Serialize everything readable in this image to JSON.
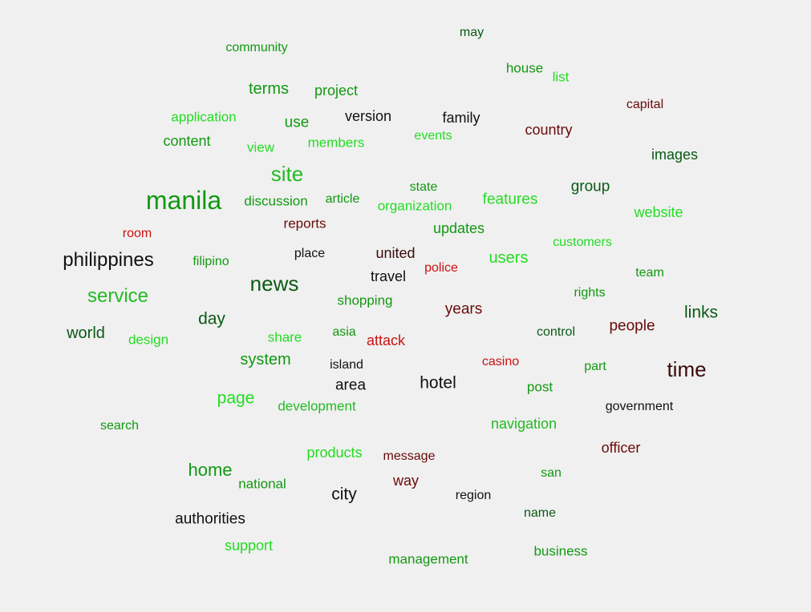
{
  "palette": {
    "bright_green": "#22dd22",
    "green": "#119911",
    "dark_green": "#0a5a14",
    "black": "#111111",
    "dark_red": "#6a0a0a",
    "red": "#cc1111"
  },
  "words": [
    {
      "text": "may",
      "color": "#0a5a14"
    },
    {
      "text": "community",
      "color": "#119911"
    },
    {
      "text": "house",
      "color": "#119911"
    },
    {
      "text": "list",
      "color": "#22dd22"
    },
    {
      "text": "terms",
      "color": "#119911"
    },
    {
      "text": "project",
      "color": "#119911"
    },
    {
      "text": "capital",
      "color": "#6a0a0a"
    },
    {
      "text": "application",
      "color": "#22dd22"
    },
    {
      "text": "use",
      "color": "#119911"
    },
    {
      "text": "version",
      "color": "#111111"
    },
    {
      "text": "family",
      "color": "#111111"
    },
    {
      "text": "country",
      "color": "#6a0a0a"
    },
    {
      "text": "content",
      "color": "#119911"
    },
    {
      "text": "view",
      "color": "#22dd22"
    },
    {
      "text": "members",
      "color": "#22dd22"
    },
    {
      "text": "events",
      "color": "#22dd22"
    },
    {
      "text": "images",
      "color": "#0a5a14"
    },
    {
      "text": "site",
      "color": "#22bb22"
    },
    {
      "text": "state",
      "color": "#119911"
    },
    {
      "text": "group",
      "color": "#0a5a14"
    },
    {
      "text": "manila",
      "color": "#119911"
    },
    {
      "text": "discussion",
      "color": "#119911"
    },
    {
      "text": "article",
      "color": "#119911"
    },
    {
      "text": "features",
      "color": "#22dd22"
    },
    {
      "text": "organization",
      "color": "#22dd22"
    },
    {
      "text": "website",
      "color": "#22dd22"
    },
    {
      "text": "reports",
      "color": "#6a0a0a"
    },
    {
      "text": "room",
      "color": "#cc1111"
    },
    {
      "text": "updates",
      "color": "#119911"
    },
    {
      "text": "customers",
      "color": "#22dd22"
    },
    {
      "text": "philippines",
      "color": "#111111"
    },
    {
      "text": "filipino",
      "color": "#119911"
    },
    {
      "text": "place",
      "color": "#111111"
    },
    {
      "text": "united",
      "color": "#3a0a0a"
    },
    {
      "text": "police",
      "color": "#cc1111"
    },
    {
      "text": "users",
      "color": "#22dd22"
    },
    {
      "text": "team",
      "color": "#119911"
    },
    {
      "text": "news",
      "color": "#0a5a14"
    },
    {
      "text": "travel",
      "color": "#111111"
    },
    {
      "text": "service",
      "color": "#22bb22"
    },
    {
      "text": "shopping",
      "color": "#119911"
    },
    {
      "text": "rights",
      "color": "#119911"
    },
    {
      "text": "years",
      "color": "#6a0a0a"
    },
    {
      "text": "links",
      "color": "#0a5a14"
    },
    {
      "text": "day",
      "color": "#0a5a14"
    },
    {
      "text": "people",
      "color": "#6a0a0a"
    },
    {
      "text": "world",
      "color": "#0a5a14"
    },
    {
      "text": "share",
      "color": "#22dd22"
    },
    {
      "text": "asia",
      "color": "#119911"
    },
    {
      "text": "control",
      "color": "#0a5a14"
    },
    {
      "text": "design",
      "color": "#22dd22"
    },
    {
      "text": "attack",
      "color": "#cc1111"
    },
    {
      "text": "system",
      "color": "#119911"
    },
    {
      "text": "casino",
      "color": "#cc1111"
    },
    {
      "text": "island",
      "color": "#111111"
    },
    {
      "text": "part",
      "color": "#119911"
    },
    {
      "text": "time",
      "color": "#3a0a0a"
    },
    {
      "text": "hotel",
      "color": "#111111"
    },
    {
      "text": "area",
      "color": "#111111"
    },
    {
      "text": "post",
      "color": "#119911"
    },
    {
      "text": "page",
      "color": "#22dd22"
    },
    {
      "text": "development",
      "color": "#22bb22"
    },
    {
      "text": "government",
      "color": "#111111"
    },
    {
      "text": "search",
      "color": "#119911"
    },
    {
      "text": "navigation",
      "color": "#22bb22"
    },
    {
      "text": "officer",
      "color": "#6a0a0a"
    },
    {
      "text": "products",
      "color": "#22dd22"
    },
    {
      "text": "message",
      "color": "#6a0a0a"
    },
    {
      "text": "home",
      "color": "#119911"
    },
    {
      "text": "san",
      "color": "#119911"
    },
    {
      "text": "way",
      "color": "#6a0a0a"
    },
    {
      "text": "national",
      "color": "#119911"
    },
    {
      "text": "city",
      "color": "#111111"
    },
    {
      "text": "region",
      "color": "#111111"
    },
    {
      "text": "name",
      "color": "#0a5a14"
    },
    {
      "text": "authorities",
      "color": "#111111"
    },
    {
      "text": "support",
      "color": "#22dd22"
    },
    {
      "text": "business",
      "color": "#119911"
    },
    {
      "text": "management",
      "color": "#119911"
    }
  ]
}
